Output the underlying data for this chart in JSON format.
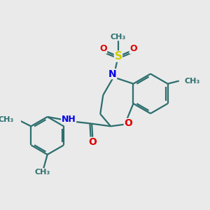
{
  "bg_color": "#eaeaea",
  "bond_color": "#2d6e6e",
  "bond_width": 1.6,
  "atom_colors": {
    "N": "#0000ee",
    "O": "#dd0000",
    "S": "#cccc00",
    "C": "#2d6e6e"
  },
  "font_size": 9,
  "figsize": [
    3.0,
    3.0
  ],
  "dpi": 100,
  "xlim": [
    0,
    10
  ],
  "ylim": [
    0,
    10
  ]
}
